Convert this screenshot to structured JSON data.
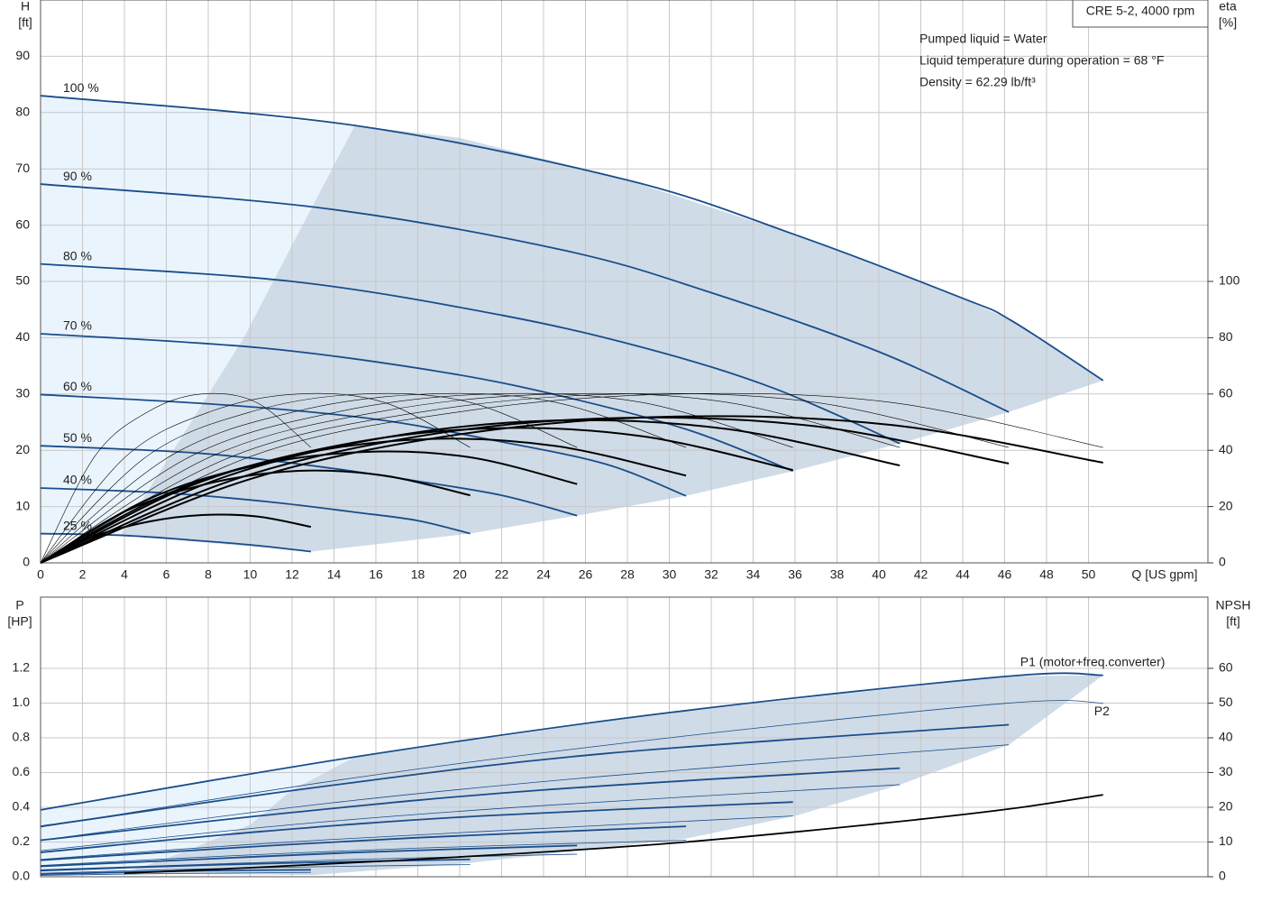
{
  "header": {
    "title": "CRE 5-2, 4000 rpm",
    "notes": [
      "Pumped liquid = Water",
      "Liquid temperature during operation = 68 °F",
      "Density = 62.29 lb/ft³"
    ]
  },
  "chart_data": [
    {
      "type": "line",
      "x_label": "Q [US gpm]",
      "y_label": "H",
      "y_unit": "[ft]",
      "y2_label": "eta",
      "y2_unit": "[%]",
      "xlim": [
        0,
        55.7
      ],
      "ylim": [
        0,
        100
      ],
      "y2lim": [
        0,
        200
      ],
      "xticks": [
        0,
        2,
        4,
        6,
        8,
        10,
        12,
        14,
        16,
        18,
        20,
        22,
        24,
        26,
        28,
        30,
        32,
        34,
        36,
        38,
        40,
        42,
        44,
        46,
        48,
        50
      ],
      "yticks": [
        0,
        10,
        20,
        30,
        40,
        50,
        60,
        70,
        80,
        90
      ],
      "y2ticks": [
        0,
        20,
        40,
        60,
        80,
        100
      ],
      "grid": true,
      "areas": [
        {
          "color": "#eaf4fd",
          "x": [
            0,
            15,
            12.5,
            9.7,
            3.8,
            0
          ],
          "values": [
            83,
            77.7,
            60,
            40,
            4.9,
            5.2
          ]
        },
        {
          "color": "#cfdbe7",
          "x": [
            15,
            20,
            28,
            36,
            44,
            46.3,
            50.7,
            46.2,
            41,
            35.9,
            30.8,
            25.6,
            20.5,
            12.9,
            3.8,
            9.7,
            12.5
          ],
          "values": [
            77.7,
            75.5,
            68,
            58.3,
            47,
            43.1,
            32.4,
            26.8,
            21.2,
            16.3,
            11.9,
            8.4,
            5.2,
            2,
            4.9,
            40,
            60
          ]
        }
      ],
      "series": [
        {
          "name": "100 %",
          "color": "#1a4d8a",
          "x": [
            0,
            15,
            28,
            36,
            44,
            46.3,
            50.7
          ],
          "values": [
            83,
            77.7,
            68,
            58.3,
            47,
            43.1,
            32.4
          ]
        },
        {
          "name": "90 %",
          "color": "#1a4d8a",
          "x": [
            0,
            13.5,
            25,
            32,
            40,
            46.2
          ],
          "values": [
            67.3,
            63,
            55.5,
            48,
            37.5,
            26.8
          ]
        },
        {
          "name": "80 %",
          "color": "#1a4d8a",
          "x": [
            0,
            12,
            22,
            29,
            35,
            41
          ],
          "values": [
            53.1,
            50,
            44,
            38,
            31,
            21.2
          ]
        },
        {
          "name": "70 %",
          "color": "#1a4d8a",
          "x": [
            0,
            10.5,
            19,
            25,
            31,
            35.9
          ],
          "values": [
            40.7,
            38.2,
            34,
            29.5,
            23.5,
            16.3
          ]
        },
        {
          "name": "60 %",
          "color": "#1a4d8a",
          "x": [
            0,
            9,
            16,
            22,
            27,
            30.8
          ],
          "values": [
            29.9,
            28,
            25.5,
            21.5,
            17.5,
            11.9
          ]
        },
        {
          "name": "50 %",
          "color": "#1a4d8a",
          "x": [
            0,
            7.5,
            13.5,
            18,
            22,
            25.6
          ],
          "values": [
            20.8,
            19.5,
            17,
            14.5,
            12,
            8.4
          ]
        },
        {
          "name": "40 %",
          "color": "#1a4d8a",
          "x": [
            0,
            6,
            11,
            15,
            18,
            20.5
          ],
          "values": [
            13.3,
            12.4,
            10.8,
            9,
            7.5,
            5.2
          ]
        },
        {
          "name": "25 %",
          "color": "#1a4d8a",
          "x": [
            0,
            3.8,
            7,
            10,
            12.9
          ],
          "values": [
            5.2,
            4.9,
            4.1,
            3.2,
            2
          ]
        },
        {
          "color": "#000000",
          "width": 0.6,
          "axis": "y2",
          "x": [
            0,
            10.1,
            20.3,
            30.4,
            40.6,
            50.7
          ],
          "values": [
            0,
            38,
            54,
            60,
            57,
            41
          ]
        },
        {
          "color": "#000000",
          "width": 0.6,
          "axis": "y2",
          "x": [
            0,
            9.2,
            18.5,
            27.7,
            37,
            46.2
          ],
          "values": [
            0,
            38,
            54,
            60,
            57,
            41
          ]
        },
        {
          "color": "#000000",
          "width": 0.6,
          "axis": "y2",
          "x": [
            0,
            8.2,
            16.4,
            24.6,
            32.8,
            41
          ],
          "values": [
            0,
            38,
            54,
            60,
            57,
            41
          ]
        },
        {
          "color": "#000000",
          "width": 0.6,
          "axis": "y2",
          "x": [
            0,
            7.2,
            14.4,
            21.5,
            28.7,
            35.9
          ],
          "values": [
            0,
            38,
            54,
            60,
            57,
            41
          ]
        },
        {
          "color": "#000000",
          "width": 0.6,
          "axis": "y2",
          "x": [
            0,
            6.2,
            12.3,
            18.5,
            24.6,
            30.8
          ],
          "values": [
            0,
            38,
            54,
            60,
            57,
            41
          ]
        },
        {
          "color": "#000000",
          "width": 0.6,
          "axis": "y2",
          "x": [
            0,
            5.1,
            10.2,
            15.4,
            20.5,
            25.6
          ],
          "values": [
            0,
            38,
            54,
            60,
            57,
            41
          ]
        },
        {
          "color": "#000000",
          "width": 0.6,
          "axis": "y2",
          "x": [
            0,
            4.1,
            8.2,
            12.3,
            16.4,
            20.5
          ],
          "values": [
            0,
            38,
            54,
            60,
            57,
            41
          ]
        },
        {
          "color": "#000000",
          "width": 0.6,
          "axis": "y2",
          "x": [
            0,
            2.6,
            5.2,
            7.7,
            10.3,
            12.9
          ],
          "values": [
            0,
            38,
            54,
            60,
            57,
            41
          ]
        },
        {
          "color": "#000000",
          "width": 2,
          "axis": "y2",
          "x": [
            0,
            10.1,
            20.3,
            30.4,
            40.6,
            50.7
          ],
          "values": [
            0,
            30,
            46,
            52,
            49,
            35.6
          ]
        },
        {
          "color": "#000000",
          "width": 2,
          "axis": "y2",
          "x": [
            0,
            9.2,
            18.5,
            27.7,
            37,
            46.2
          ],
          "values": [
            0,
            29.5,
            45.5,
            51.5,
            48.5,
            35.3
          ]
        },
        {
          "color": "#000000",
          "width": 2,
          "axis": "y2",
          "x": [
            0,
            8.2,
            16.4,
            24.6,
            32.8,
            41
          ],
          "values": [
            0,
            29,
            44.5,
            50.6,
            47.5,
            34.6
          ]
        },
        {
          "color": "#000000",
          "width": 2,
          "axis": "y2",
          "x": [
            0,
            7.2,
            14.4,
            21.5,
            28.7,
            35.9
          ],
          "values": [
            0,
            27.5,
            42,
            47.8,
            45,
            33
          ]
        },
        {
          "color": "#000000",
          "width": 2,
          "axis": "y2",
          "x": [
            0,
            6.2,
            12.3,
            18.5,
            24.6,
            30.8
          ],
          "values": [
            0,
            25,
            38.5,
            44,
            41.5,
            31
          ]
        },
        {
          "color": "#000000",
          "width": 2,
          "axis": "y2",
          "x": [
            0,
            5.1,
            10.2,
            15.4,
            20.5,
            25.6
          ],
          "values": [
            0,
            22.5,
            34.5,
            39.4,
            37.5,
            28
          ]
        },
        {
          "color": "#000000",
          "width": 2,
          "axis": "y2",
          "x": [
            0,
            4.1,
            8.2,
            12.3,
            16.4,
            20.5
          ],
          "values": [
            0,
            18.5,
            28.5,
            32.7,
            31,
            24
          ]
        },
        {
          "color": "#000000",
          "width": 2,
          "axis": "y2",
          "x": [
            0,
            2.6,
            5.2,
            7.7,
            10.3,
            12.9
          ],
          "values": [
            0,
            9.5,
            14.7,
            17,
            16.5,
            12.8
          ]
        }
      ]
    },
    {
      "type": "line",
      "y_label": "P",
      "y_unit": "[HP]",
      "y2_label": "NPSH",
      "y2_unit": "[ft]",
      "xlim": [
        0,
        55.7
      ],
      "ylim": [
        0,
        1.61
      ],
      "y2lim": [
        0,
        80.5
      ],
      "xticks": [
        0,
        2,
        4,
        6,
        8,
        10,
        12,
        14,
        16,
        18,
        20,
        22,
        24,
        26,
        28,
        30,
        32,
        34,
        36,
        38,
        40,
        42,
        44,
        46,
        48,
        50
      ],
      "yticks": [
        {
          "value": 0,
          "label": "0.0"
        },
        0.2,
        0.4,
        0.6,
        0.8,
        {
          "value": 1,
          "label": "1.0"
        },
        1.2
      ],
      "y2ticks": [
        0,
        10,
        20,
        30,
        40,
        50,
        60
      ],
      "grid": true,
      "areas": [
        {
          "color": "#eaf4fd",
          "x": [
            0,
            15,
            12,
            10,
            7,
            4,
            0
          ],
          "values": [
            0.385,
            0.69,
            0.5,
            0.3,
            0.15,
            0.02,
            0.02
          ]
        },
        {
          "color": "#cfdbe7",
          "x": [
            15,
            30,
            46.2,
            50.7,
            46.2,
            41,
            36,
            30.8,
            20.5,
            13,
            4,
            7,
            10,
            12
          ],
          "values": [
            0.69,
            0.945,
            1.155,
            1.16,
            0.76,
            0.53,
            0.35,
            0.22,
            0.08,
            0.01,
            0.02,
            0.15,
            0.3,
            0.5
          ]
        }
      ],
      "series": [
        {
          "name": "P1 (motor+freq.converter)",
          "color": "#1a4d8a",
          "width": 1.8,
          "x": [
            0,
            15,
            30,
            46.2,
            50.7
          ],
          "values": [
            0.385,
            0.69,
            0.945,
            1.155,
            1.16
          ]
        },
        {
          "name": "P2",
          "color": "#1a4d8a",
          "width": 0.8,
          "x": [
            0,
            15,
            30,
            46.2,
            50.7
          ],
          "values": [
            0.286,
            0.57,
            0.8,
            1,
            1
          ]
        },
        {
          "color": "#1a4d8a",
          "width": 1.8,
          "x": [
            0,
            13.5,
            27,
            46.2
          ],
          "values": [
            0.29,
            0.52,
            0.71,
            0.875
          ]
        },
        {
          "color": "#1a4d8a",
          "width": 1.8,
          "x": [
            0,
            12,
            24,
            41
          ],
          "values": [
            0.21,
            0.37,
            0.5,
            0.625
          ]
        },
        {
          "color": "#1a4d8a",
          "width": 1.8,
          "x": [
            0,
            10.5,
            21,
            35.9
          ],
          "values": [
            0.14,
            0.26,
            0.35,
            0.43
          ]
        },
        {
          "color": "#1a4d8a",
          "width": 1.8,
          "x": [
            0,
            9,
            18,
            30.8
          ],
          "values": [
            0.095,
            0.165,
            0.225,
            0.29
          ]
        },
        {
          "color": "#1a4d8a",
          "width": 1.8,
          "x": [
            0,
            7.5,
            15,
            25.6
          ],
          "values": [
            0.06,
            0.1,
            0.14,
            0.18
          ]
        },
        {
          "color": "#1a4d8a",
          "width": 1.8,
          "x": [
            0,
            6,
            12,
            20.5
          ],
          "values": [
            0.035,
            0.06,
            0.08,
            0.1
          ]
        },
        {
          "color": "#1a4d8a",
          "width": 1.8,
          "x": [
            0,
            4,
            8,
            12.9
          ],
          "values": [
            0.015,
            0.025,
            0.035,
            0.04
          ]
        },
        {
          "color": "#1a4d8a",
          "width": 0.8,
          "x": [
            0,
            13.5,
            27,
            46.2
          ],
          "values": [
            0.21,
            0.42,
            0.58,
            0.76
          ]
        },
        {
          "color": "#1a4d8a",
          "width": 0.8,
          "x": [
            0,
            12,
            24,
            41
          ],
          "values": [
            0.15,
            0.3,
            0.41,
            0.53
          ]
        },
        {
          "color": "#1a4d8a",
          "width": 0.8,
          "x": [
            0,
            10.5,
            21,
            35.9
          ],
          "values": [
            0.1,
            0.19,
            0.26,
            0.35
          ]
        },
        {
          "color": "#1a4d8a",
          "width": 0.8,
          "x": [
            0,
            9,
            18,
            30.8
          ],
          "values": [
            0.065,
            0.12,
            0.165,
            0.21
          ]
        },
        {
          "color": "#1a4d8a",
          "width": 0.8,
          "x": [
            0,
            7.5,
            15,
            25.6
          ],
          "values": [
            0.04,
            0.07,
            0.1,
            0.13
          ]
        },
        {
          "color": "#1a4d8a",
          "width": 0.8,
          "x": [
            0,
            6,
            12,
            20.5
          ],
          "values": [
            0.02,
            0.04,
            0.055,
            0.07
          ]
        },
        {
          "color": "#1a4d8a",
          "width": 0.8,
          "x": [
            0,
            4,
            8,
            12.9
          ],
          "values": [
            0.008,
            0.015,
            0.02,
            0.025
          ]
        },
        {
          "color": "#000000",
          "width": 1.8,
          "axis": "y2",
          "x": [
            4,
            10,
            20,
            30,
            40,
            46.2,
            50.7
          ],
          "values": [
            1,
            2.6,
            5.7,
            9.6,
            15.3,
            19.5,
            23.6
          ]
        }
      ]
    }
  ]
}
